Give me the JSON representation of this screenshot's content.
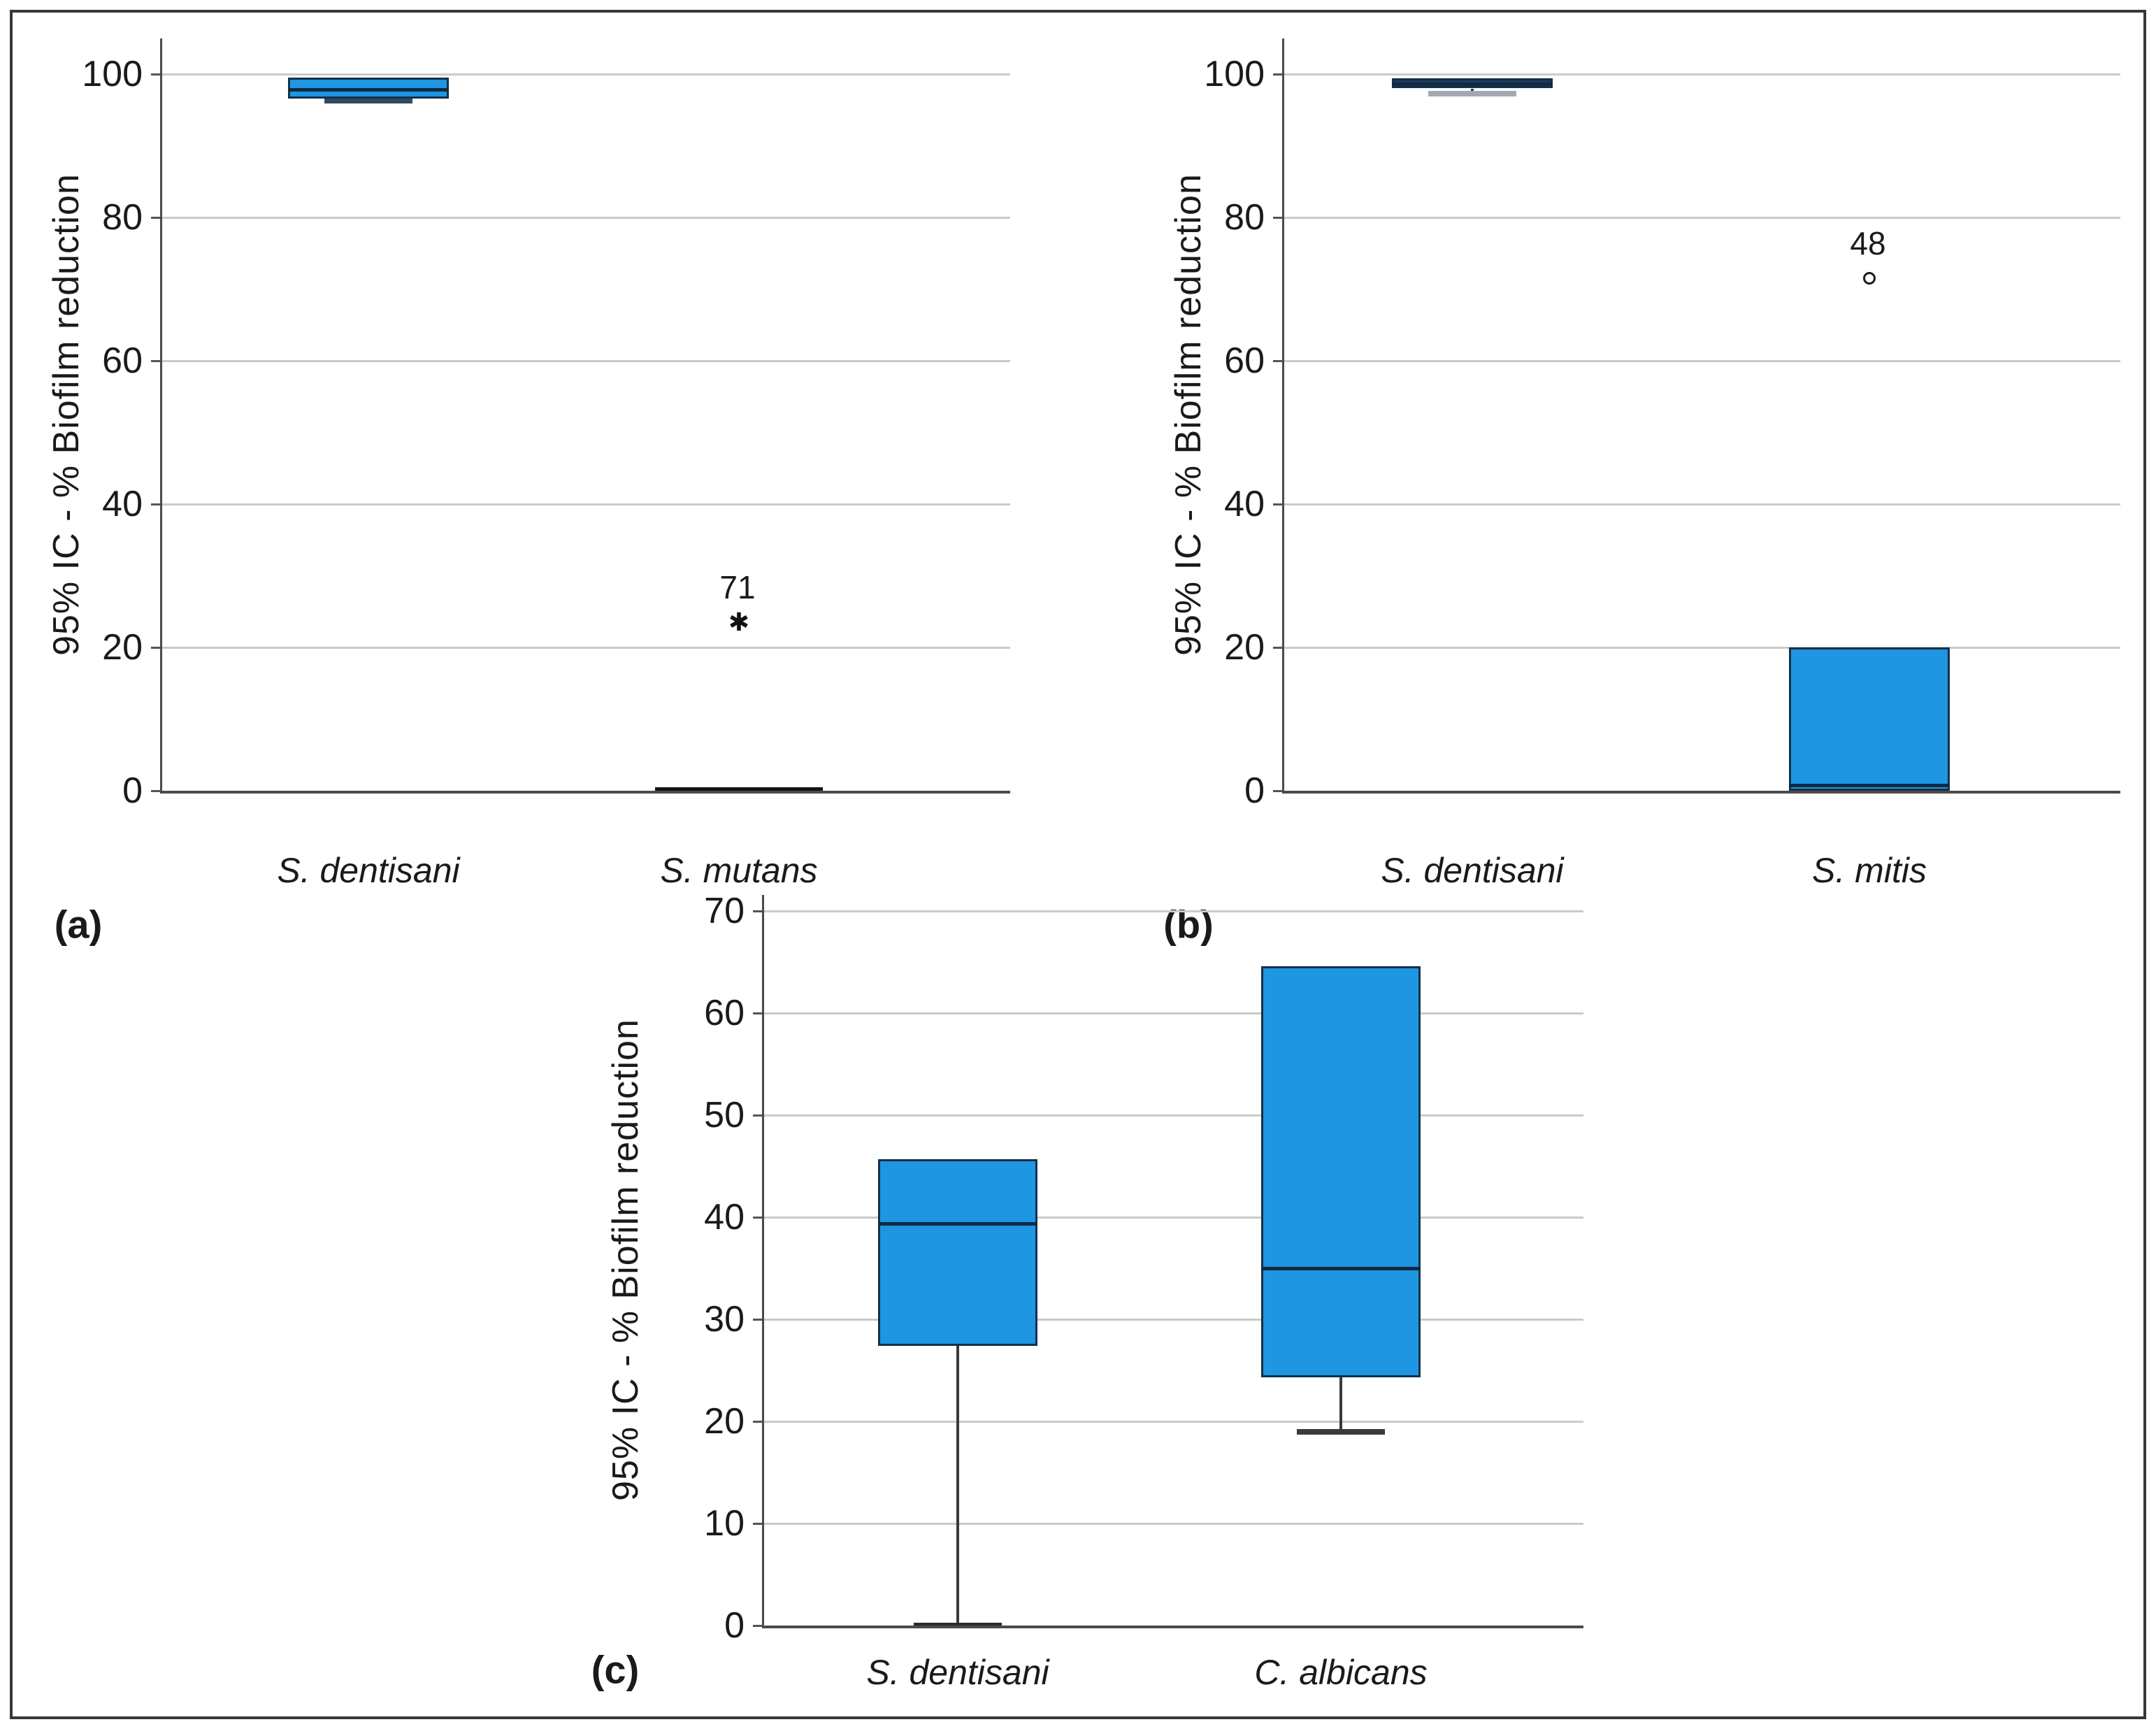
{
  "figure": {
    "background": "#ffffff",
    "border_color": "#383838",
    "text_color": "#1a1a1a",
    "gridline_color": "#cacaca",
    "axis_color": "#4a4a4a",
    "box_blue": "#1e96e2",
    "box_navy_fill": "#1d3c5a",
    "box_border_navy": "#14304a"
  },
  "chart_data": [
    {
      "type": "boxplot",
      "panel_label": "(a)",
      "ylabel": "95% IC - % Biofilm reduction",
      "ylim": [
        0,
        100
      ],
      "yticks": [
        0,
        20,
        40,
        60,
        80,
        100
      ],
      "grid": "horizontal",
      "legend": "none",
      "categories": [
        "S. dentisani",
        "S. mutans"
      ],
      "boxes": [
        {
          "category": "S. dentisani",
          "q1": 96.6,
          "median": 97.9,
          "q3": 99.5,
          "whisker_low": 96.3,
          "whisker_high": null,
          "fill": "#1e96e2",
          "cap_color": "#33495e",
          "outliers": []
        },
        {
          "category": "S. mutans",
          "q1": 0,
          "median": 0.2,
          "q3": 0.4,
          "whisker_low": null,
          "whisker_high": null,
          "fill": "collapsed",
          "cap_color": null,
          "outliers": [
            {
              "value": 23.5,
              "label": "71",
              "marker": "star"
            }
          ]
        }
      ]
    },
    {
      "type": "boxplot",
      "panel_label": "(b)",
      "ylabel": "95% IC - % Biofilm reduction",
      "ylim": [
        0,
        100
      ],
      "yticks": [
        0,
        20,
        40,
        60,
        80,
        100
      ],
      "grid": "horizontal",
      "legend": "none",
      "categories": [
        "S. dentisani",
        "S. mitis"
      ],
      "boxes": [
        {
          "category": "S. dentisani",
          "q1": 98.0,
          "median": 98.6,
          "q3": 99.4,
          "whisker_low": 97.3,
          "whisker_high": null,
          "fill": "#1d3c5a",
          "cap_color": "#a3a9b3",
          "outliers": []
        },
        {
          "category": "S. mitis",
          "q1": 0,
          "median": 0.8,
          "q3": 20,
          "whisker_low": null,
          "whisker_high": null,
          "fill": "#1e96e2",
          "cap_color": null,
          "outliers": [
            {
              "value": 71.5,
              "label": "48",
              "marker": "circle"
            }
          ]
        }
      ]
    },
    {
      "type": "boxplot",
      "panel_label": "(c)",
      "ylabel": "95% IC - % Biofilm reduction",
      "ylim": [
        0,
        70
      ],
      "yticks": [
        0,
        10,
        20,
        30,
        40,
        50,
        60,
        70
      ],
      "grid": "horizontal",
      "legend": "none",
      "categories": [
        "S. dentisani",
        "C. albicans"
      ],
      "boxes": [
        {
          "category": "S. dentisani",
          "q1": 27.4,
          "median": 39.4,
          "q3": 45.7,
          "whisker_low": 0,
          "whisker_high": null,
          "fill": "#1e96e2",
          "cap_color": "#2b2b2b",
          "outliers": []
        },
        {
          "category": "C. albicans",
          "q1": 24.3,
          "median": 35.0,
          "q3": 64.6,
          "whisker_low": 19.0,
          "whisker_high": null,
          "fill": "#1e96e2",
          "cap_color": "#3a3a3a",
          "outliers": []
        }
      ]
    }
  ]
}
